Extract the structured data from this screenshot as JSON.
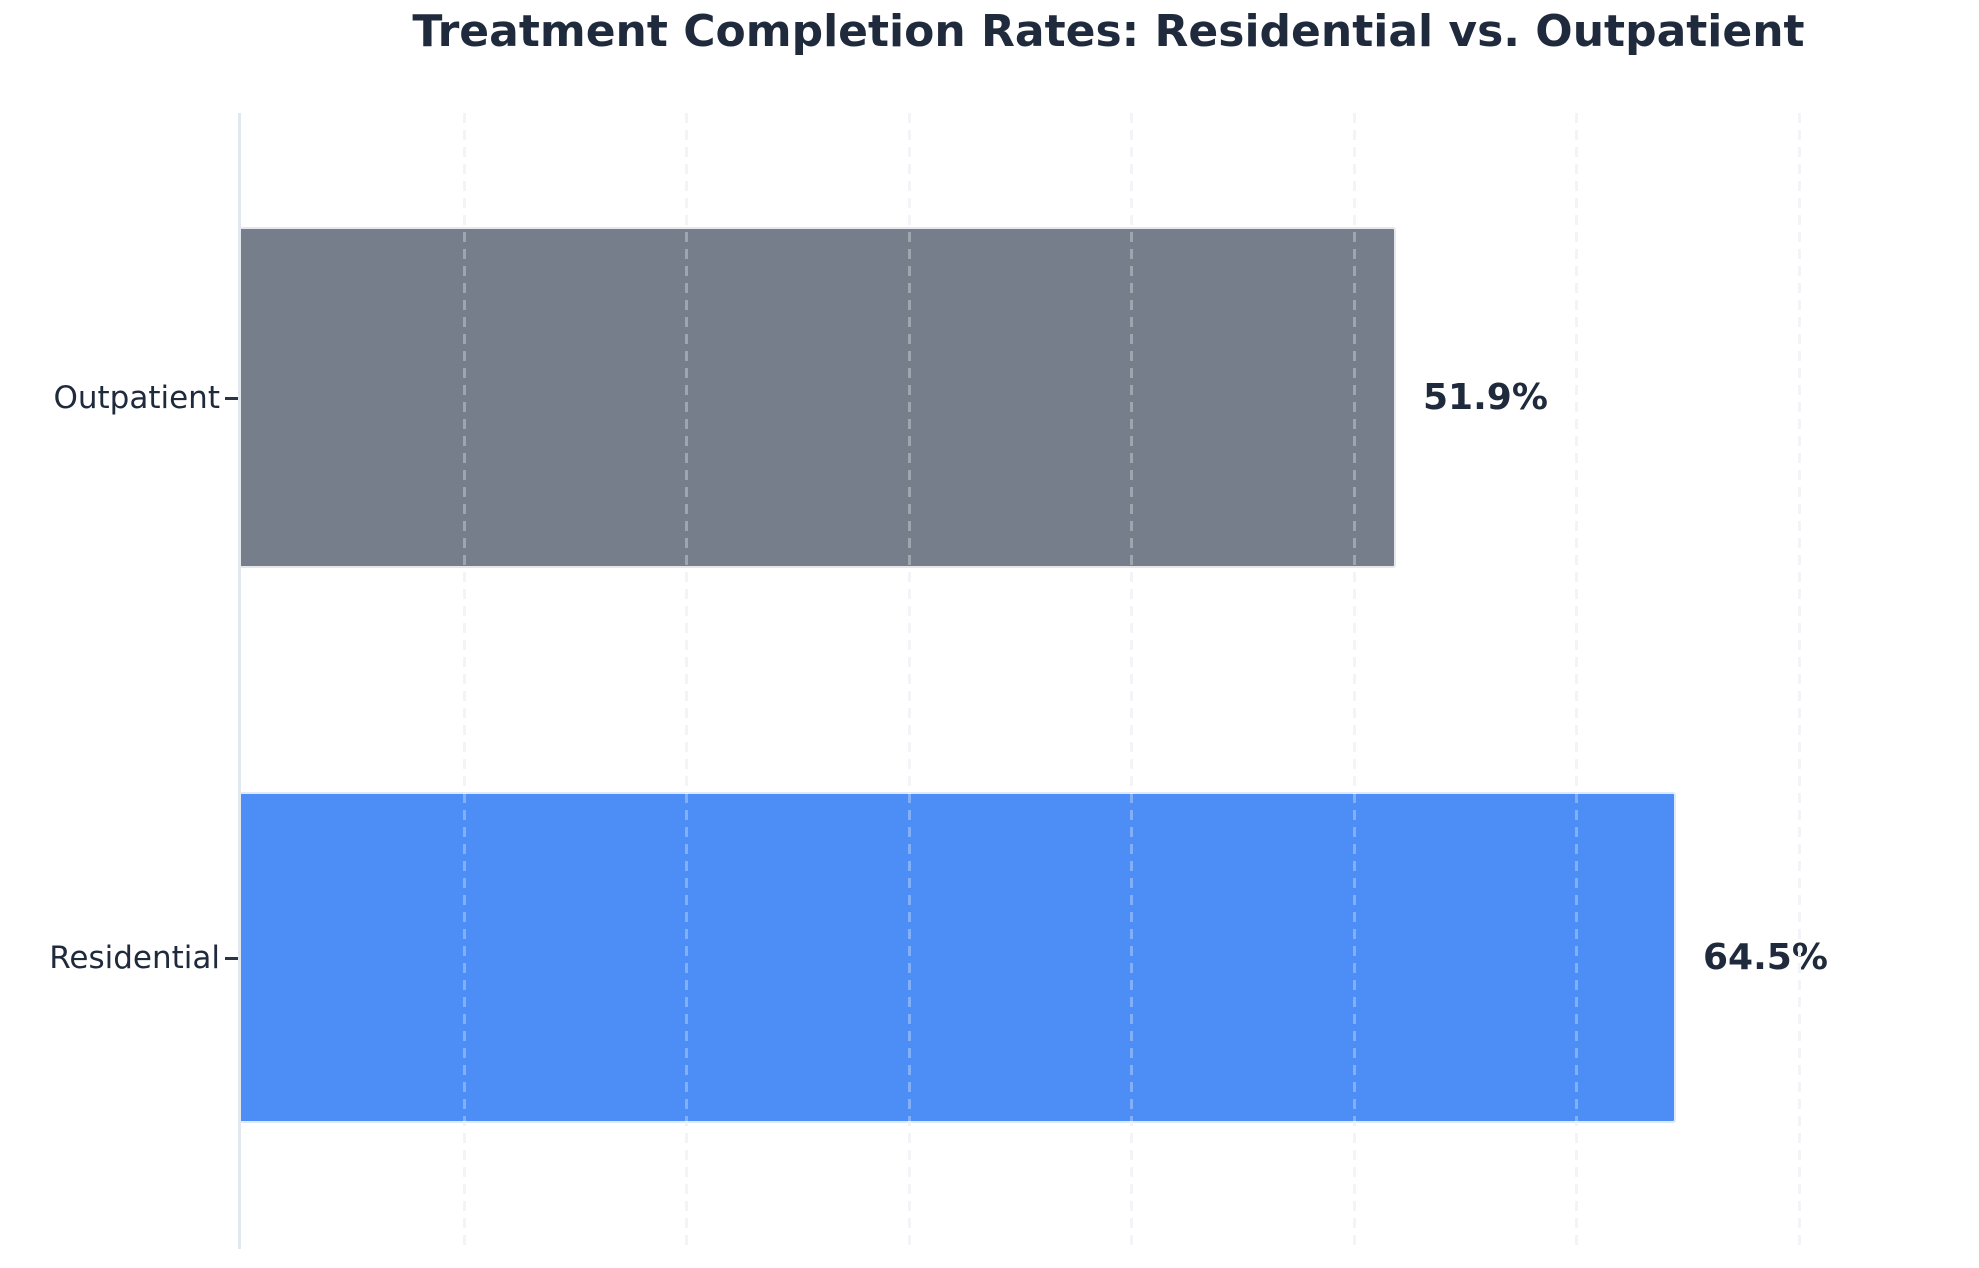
{
  "title": "Treatment Completion Rates: Residential vs. Outpatient",
  "colors": {
    "background": "#FFFFFF",
    "title_text": "#1F2A3C",
    "category_label_text": "#1F2A3C",
    "value_label_text": "#1F2A3C",
    "axis_spine": "#E2E7F0",
    "gridline": "#EDEFF4",
    "bar_outpatient": "#767E8B",
    "bar_residential": "#4C8DF6"
  },
  "chart_data": {
    "type": "bar",
    "orientation": "horizontal",
    "title": "Treatment Completion Rates: Residential vs. Outpatient",
    "categories": [
      "Outpatient",
      "Residential"
    ],
    "values": [
      51.9,
      64.5
    ],
    "value_labels": [
      "51.9%",
      "64.5%"
    ],
    "unit": "%",
    "xlim_visible": [
      0,
      78
    ],
    "grid": {
      "axis": "x",
      "style": "dashed",
      "interval_pct": 10
    },
    "legend": "none",
    "x_tick_labels_visible": false,
    "bar_colors": [
      "#767E8B",
      "#4C8DF6"
    ]
  }
}
